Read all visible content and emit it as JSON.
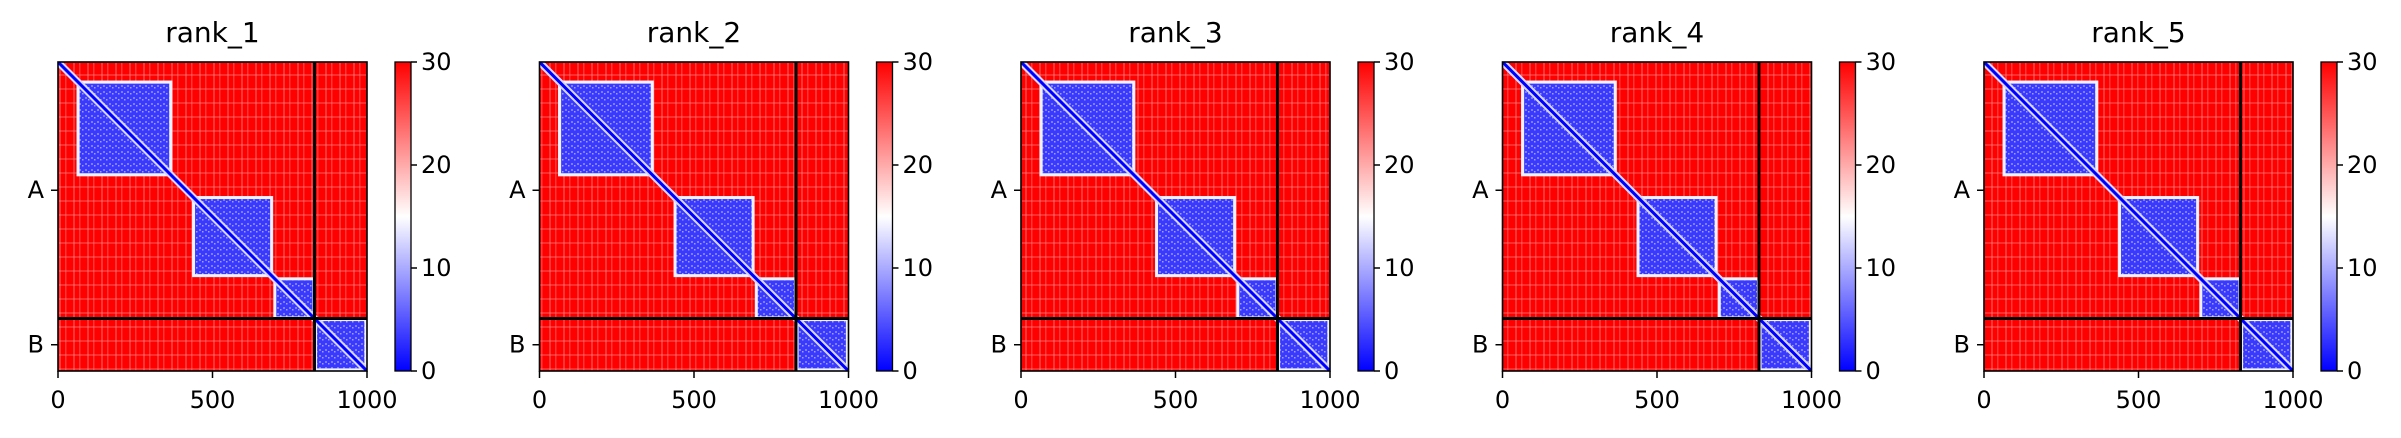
{
  "figure": {
    "background": "#ffffff"
  },
  "chart_data": [
    {
      "type": "heatmap",
      "title": "rank_1",
      "x": {
        "ticks": [
          0,
          500,
          1000
        ],
        "tick_labels": [
          "0",
          "500",
          "1000"
        ],
        "range": [
          0,
          1000
        ]
      },
      "y": {
        "chain_labels": [
          "A",
          "B"
        ],
        "chain_boundary": 830,
        "range": [
          0,
          1000
        ]
      },
      "colorbar": {
        "ticks": [
          0,
          10,
          20,
          30
        ],
        "tick_labels": [
          "0",
          "10",
          "20",
          "30"
        ],
        "range": [
          0,
          30
        ],
        "colors": [
          "#0000ff",
          "#ffffff",
          "#ff0000"
        ]
      },
      "domains": [
        [
          0,
          380
        ],
        [
          430,
          700
        ],
        [
          700,
          830
        ],
        [
          830,
          1000
        ]
      ]
    },
    {
      "type": "heatmap",
      "title": "rank_2",
      "x": {
        "ticks": [
          0,
          500,
          1000
        ],
        "tick_labels": [
          "0",
          "500",
          "1000"
        ],
        "range": [
          0,
          1000
        ]
      },
      "y": {
        "chain_labels": [
          "A",
          "B"
        ],
        "chain_boundary": 830,
        "range": [
          0,
          1000
        ]
      },
      "colorbar": {
        "ticks": [
          0,
          10,
          20,
          30
        ],
        "tick_labels": [
          "0",
          "10",
          "20",
          "30"
        ],
        "range": [
          0,
          30
        ],
        "colors": [
          "#0000ff",
          "#ffffff",
          "#ff0000"
        ]
      },
      "domains": [
        [
          0,
          380
        ],
        [
          430,
          700
        ],
        [
          700,
          830
        ],
        [
          830,
          1000
        ]
      ]
    },
    {
      "type": "heatmap",
      "title": "rank_3",
      "x": {
        "ticks": [
          0,
          500,
          1000
        ],
        "tick_labels": [
          "0",
          "500",
          "1000"
        ],
        "range": [
          0,
          1000
        ]
      },
      "y": {
        "chain_labels": [
          "A",
          "B"
        ],
        "chain_boundary": 830,
        "range": [
          0,
          1000
        ]
      },
      "colorbar": {
        "ticks": [
          0,
          10,
          20,
          30
        ],
        "tick_labels": [
          "0",
          "10",
          "20",
          "30"
        ],
        "range": [
          0,
          30
        ],
        "colors": [
          "#0000ff",
          "#ffffff",
          "#ff0000"
        ]
      },
      "domains": [
        [
          0,
          380
        ],
        [
          430,
          700
        ],
        [
          700,
          830
        ],
        [
          830,
          1000
        ]
      ]
    },
    {
      "type": "heatmap",
      "title": "rank_4",
      "x": {
        "ticks": [
          0,
          500,
          1000
        ],
        "tick_labels": [
          "0",
          "500",
          "1000"
        ],
        "range": [
          0,
          1000
        ]
      },
      "y": {
        "chain_labels": [
          "A",
          "B"
        ],
        "chain_boundary": 830,
        "range": [
          0,
          1000
        ]
      },
      "colorbar": {
        "ticks": [
          0,
          10,
          20,
          30
        ],
        "tick_labels": [
          "0",
          "10",
          "20",
          "30"
        ],
        "range": [
          0,
          30
        ],
        "colors": [
          "#0000ff",
          "#ffffff",
          "#ff0000"
        ]
      },
      "domains": [
        [
          0,
          380
        ],
        [
          430,
          700
        ],
        [
          700,
          830
        ],
        [
          830,
          1000
        ]
      ]
    },
    {
      "type": "heatmap",
      "title": "rank_5",
      "x": {
        "ticks": [
          0,
          500,
          1000
        ],
        "tick_labels": [
          "0",
          "500",
          "1000"
        ],
        "range": [
          0,
          1000
        ]
      },
      "y": {
        "chain_labels": [
          "A",
          "B"
        ],
        "chain_boundary": 830,
        "range": [
          0,
          1000
        ]
      },
      "colorbar": {
        "ticks": [
          0,
          10,
          20,
          30
        ],
        "tick_labels": [
          "0",
          "10",
          "20",
          "30"
        ],
        "range": [
          0,
          30
        ],
        "colors": [
          "#0000ff",
          "#ffffff",
          "#ff0000"
        ]
      },
      "domains": [
        [
          0,
          380
        ],
        [
          430,
          700
        ],
        [
          700,
          830
        ],
        [
          830,
          1000
        ]
      ]
    }
  ]
}
